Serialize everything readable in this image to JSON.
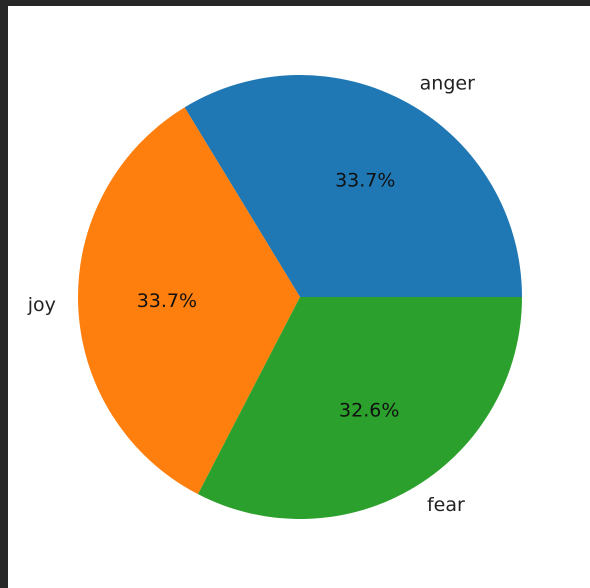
{
  "chart_data": {
    "type": "pie",
    "categories": [
      "anger",
      "joy",
      "fear"
    ],
    "values": [
      33.7,
      33.7,
      32.6
    ],
    "percent_labels": [
      "33.7%",
      "33.7%",
      "32.6%"
    ],
    "colors": [
      "#1f77b4",
      "#ff7f0e",
      "#2ca02c"
    ],
    "title": "",
    "legend": "none",
    "start_angle_deg": 0,
    "direction": "counterclockwise"
  },
  "theme": {
    "background": "#272727",
    "panel": "#ffffff"
  }
}
